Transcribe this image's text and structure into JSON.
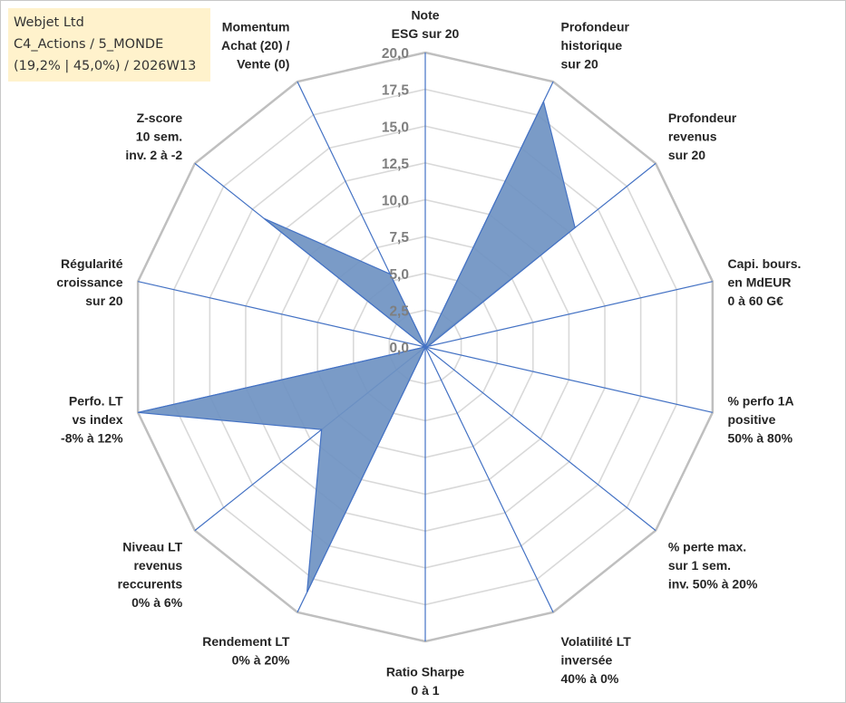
{
  "info": {
    "line1": "Webjet Ltd",
    "line2": "C4_Actions / 5_MONDE",
    "line3": "(19,2% | 45,0%) / 2026W13"
  },
  "colors": {
    "fill": "#6f93c2",
    "stroke": "#4472c4",
    "grid": "#c4c4c4",
    "axis": "#4472c4",
    "info_bg": "#fff2cc"
  },
  "chart_data": {
    "type": "radar",
    "range": [
      0,
      20
    ],
    "grid": true,
    "ticks": [
      "0,0",
      "2,5",
      "5,0",
      "7,5",
      "10,0",
      "12,5",
      "15,0",
      "17,5",
      "20,0"
    ],
    "axes": [
      {
        "label": [
          "Note",
          "ESG sur 20"
        ],
        "value": 0
      },
      {
        "label": [
          "Profondeur",
          "historique",
          "sur 20"
        ],
        "value": 18.5
      },
      {
        "label": [
          "Profondeur",
          "revenus",
          "sur 20"
        ],
        "value": 13.0
      },
      {
        "label": [
          "Capi. bours.",
          "en MdEUR",
          "0 à 60 G€"
        ],
        "value": 0.2
      },
      {
        "label": [
          "% perfo 1A",
          "positive",
          "50% à 80%"
        ],
        "value": 0
      },
      {
        "label": [
          "% perte max.",
          "sur 1 sem.",
          "inv. 50% à 20%"
        ],
        "value": 0
      },
      {
        "label": [
          "Volatilité LT",
          "inversée",
          "40% à 0%"
        ],
        "value": 0
      },
      {
        "label": [
          "Ratio Sharpe",
          "0 à 1"
        ],
        "value": 0
      },
      {
        "label": [
          "Rendement LT",
          "0% à 20%"
        ],
        "value": 18.5
      },
      {
        "label": [
          "Niveau LT",
          "revenus",
          "reccurents",
          "0% à 6%"
        ],
        "value": 9.0
      },
      {
        "label": [
          "Perfo. LT",
          "vs index",
          "-8% à 12%"
        ],
        "value": 20.0
      },
      {
        "label": [
          "Régularité",
          "croissance",
          "sur 20"
        ],
        "value": 0
      },
      {
        "label": [
          "Z-score",
          "10 sem.",
          "inv. 2 à -2"
        ],
        "value": 14.0
      },
      {
        "label": [
          "Momentum",
          "Achat (20) /",
          "Vente (0)"
        ],
        "value": 5.5
      }
    ]
  }
}
